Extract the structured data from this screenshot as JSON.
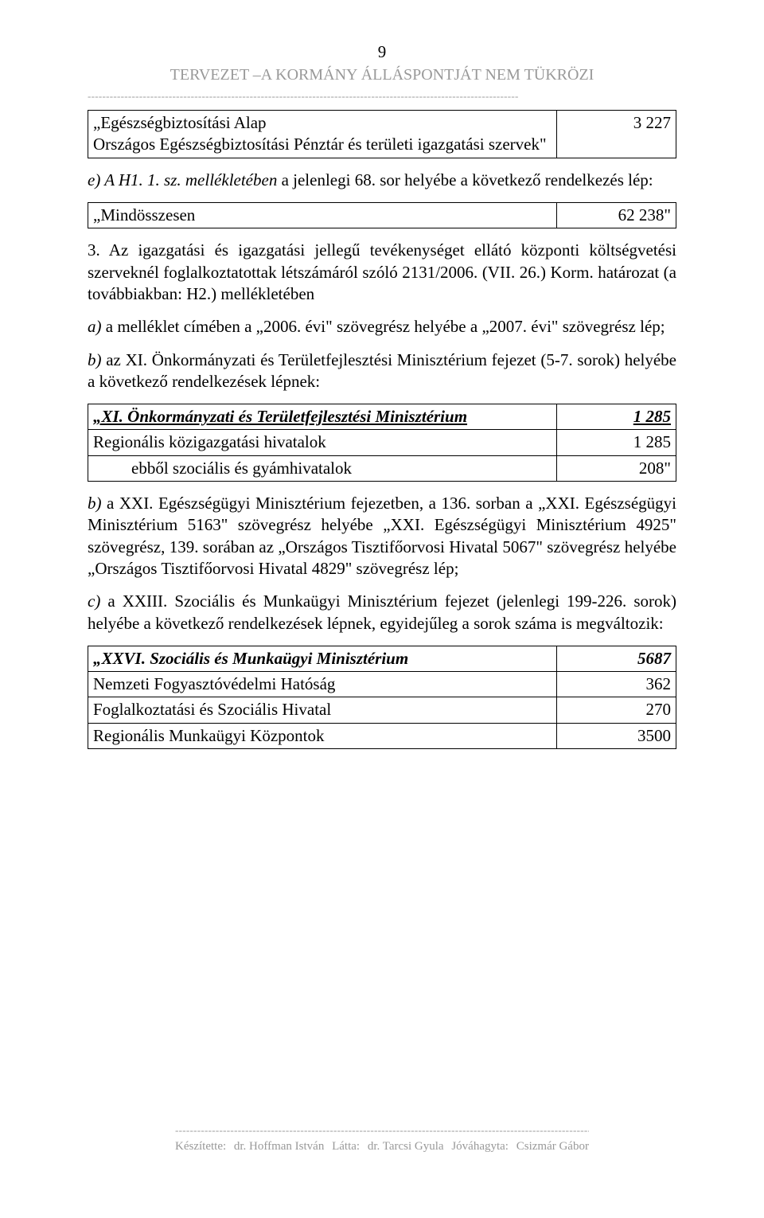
{
  "page": {
    "number": "9",
    "header": "TERVEZET –A KORMÁNY ÁLLÁSPONTJÁT NEM TÜKRÖZI",
    "dashes": "---------------------------------------------------------------------------------------------------------------------"
  },
  "table1": {
    "rows": [
      {
        "left": "„Egészségbiztosítási Alap\nOrszágos Egészségbiztosítási Pénztár és területi igazgatási szervek\"",
        "right": "3 227"
      }
    ]
  },
  "para_e": {
    "prefix": "e) ",
    "italic": "A H1. 1. sz. mellékletében",
    "rest": " a jelenlegi 68. sor helyébe a következő rendelkezés lép:"
  },
  "table2": {
    "rows": [
      {
        "left": "„Mindösszesen",
        "right": "62 238\""
      }
    ]
  },
  "para3": "3. Az igazgatási és igazgatási jellegű tevékenységet ellátó központi költségvetési szerveknél foglalkoztatottak létszámáról szóló 2131/2006. (VII. 26.) Korm. határozat (a továbbiakban: H2.) mellékletében",
  "para_a": "a) a melléklet címében a „2006. évi\" szövegrész helyébe a „2007. évi\" szövegrész lép;",
  "para_b1": "b) az XI. Önkormányzati és Területfejlesztési Minisztérium fejezet (5-7. sorok) helyébe a következő rendelkezések lépnek:",
  "table3": {
    "rows": [
      {
        "left": "„XI. Önkormányzati és Területfejlesztési Minisztérium",
        "right": "1 285",
        "style": "bold-italic-underline"
      },
      {
        "left": "Regionális közigazgatási hivatalok",
        "right": "1 285",
        "style": ""
      },
      {
        "left": "ebből szociális és gyámhivatalok",
        "right": "208\"",
        "style": "indent"
      }
    ]
  },
  "para_b2": "b) a XXI. Egészségügyi Minisztérium fejezetben, a 136. sorban a „XXI. Egészségügyi Minisztérium 5163\" szövegrész helyébe „XXI. Egészségügyi Minisztérium 4925\" szövegrész, 139. sorában az „Országos Tisztifőorvosi Hivatal 5067\" szövegrész helyébe „Országos Tisztifőorvosi Hivatal 4829\" szövegrész lép;",
  "para_c": "c) a XXIII. Szociális és Munkaügyi Minisztérium fejezet (jelenlegi 199-226. sorok) helyébe a következő rendelkezések lépnek, egyidejűleg a sorok száma is megváltozik:",
  "table4": {
    "rows": [
      {
        "left": "„XXVI. Szociális és Munkaügyi Minisztérium",
        "right": "5687",
        "style": "bold-italic"
      },
      {
        "left": "Nemzeti Fogyasztóvédelmi Hatóság",
        "right": "362",
        "style": ""
      },
      {
        "left": "Foglalkoztatási és Szociális Hivatal",
        "right": "270",
        "style": ""
      },
      {
        "left": "Regionális Munkaügyi Központok",
        "right": "3500",
        "style": ""
      }
    ]
  },
  "footer": {
    "dashes": "---------------------------------------------------------------------------------------------------------------------",
    "c1a": "Készítette:",
    "c1b": "dr. Hoffman István",
    "c2a": "Látta:",
    "c2b": "dr. Tarcsi Gyula",
    "c3a": "Jóváhagyta:",
    "c3b": "Csizmár Gábor"
  }
}
